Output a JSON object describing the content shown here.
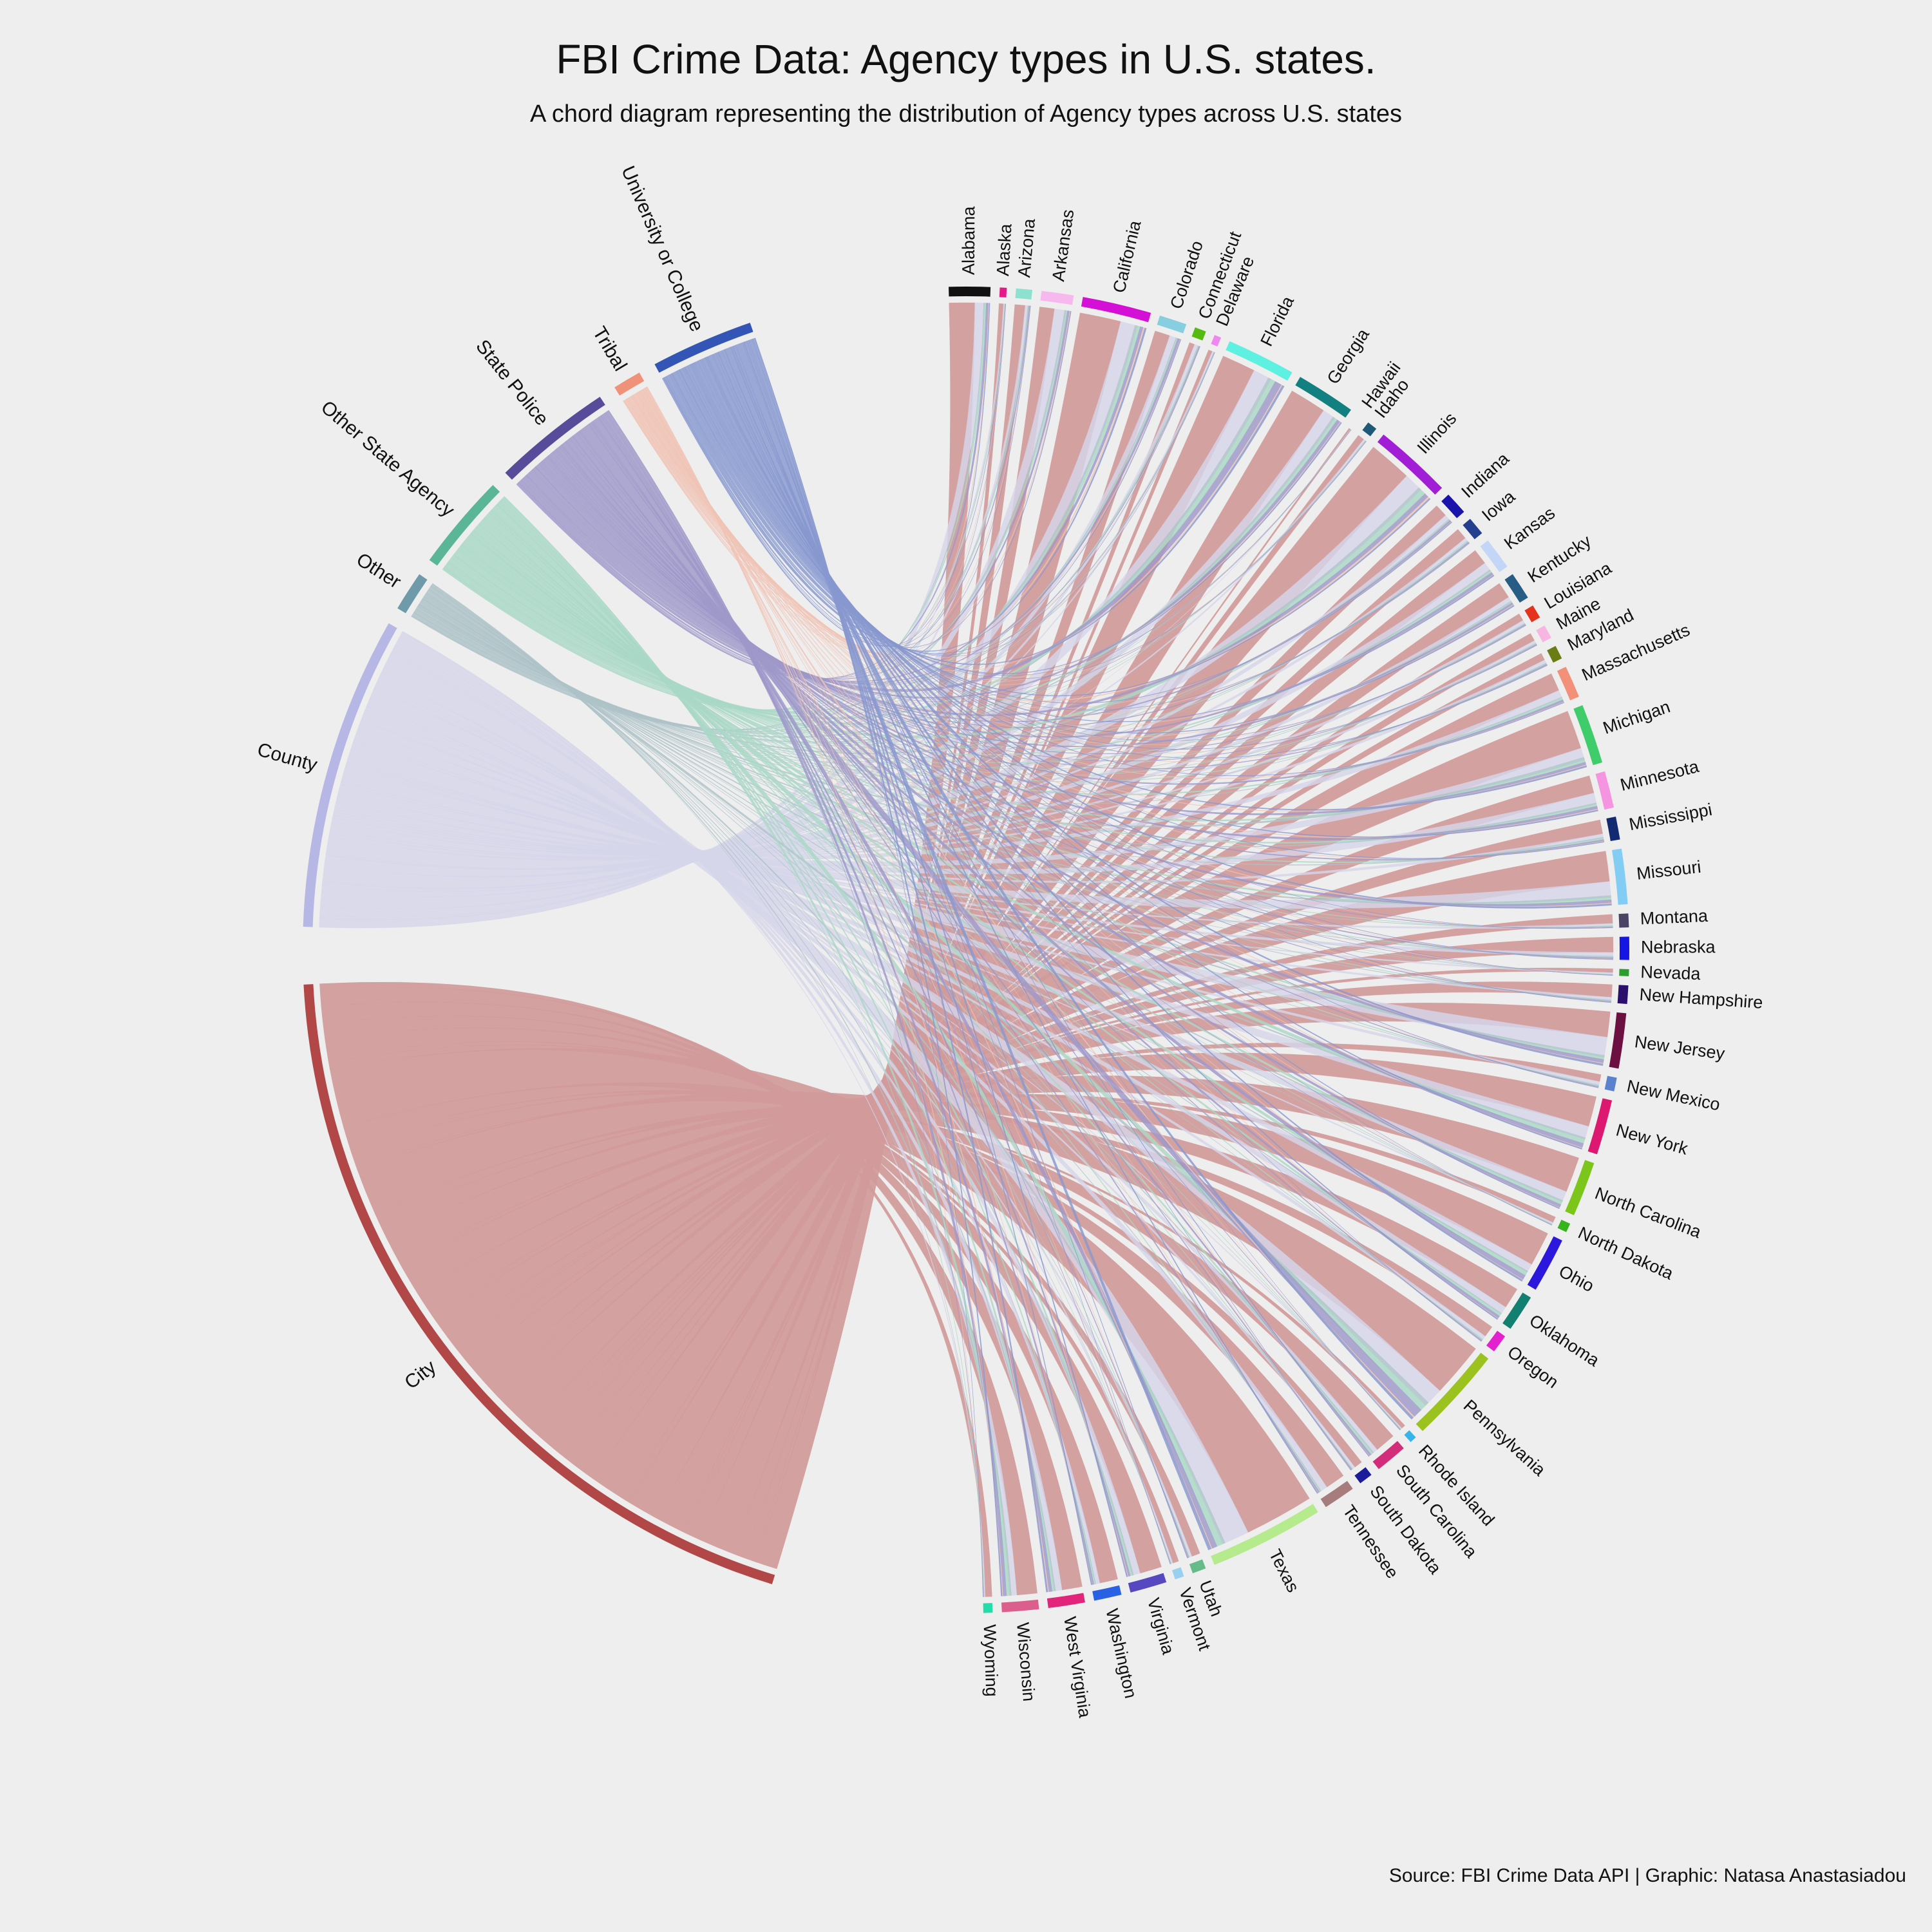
{
  "title": "FBI Crime Data: Agency types in U.S. states.",
  "subtitle": "A chord diagram representing the distribution of Agency types across U.S. states",
  "source": "Source: FBI Crime Data API | Graphic: Natasa Anastasiadou",
  "chart_data": {
    "type": "chord",
    "agency_types": [
      {
        "name": "City",
        "color": "#b24747",
        "band": "#d19a9a"
      },
      {
        "name": "County",
        "color": "#b7b7e5",
        "band": "#d6d6ea"
      },
      {
        "name": "Other",
        "color": "#6f9aa9",
        "band": "#aec3c8"
      },
      {
        "name": "Other State Agency",
        "color": "#5ab697",
        "band": "#a9d8c6"
      },
      {
        "name": "State Police",
        "color": "#574c99",
        "band": "#9f98c9"
      },
      {
        "name": "Tribal",
        "color": "#f0927a",
        "band": "#f0c4b6"
      },
      {
        "name": "University or College",
        "color": "#3355b5",
        "band": "#8798cf"
      }
    ],
    "states": [
      {
        "name": "Alabama",
        "color": "#111111",
        "value": 9
      },
      {
        "name": "Alaska",
        "color": "#e31a87",
        "value": 1.5
      },
      {
        "name": "Arizona",
        "color": "#8ee0cf",
        "value": 3.5
      },
      {
        "name": "Arkansas",
        "color": "#f7b8ee",
        "value": 7
      },
      {
        "name": "California",
        "color": "#d40fd6",
        "value": 15
      },
      {
        "name": "Colorado",
        "color": "#87cfe0",
        "value": 6
      },
      {
        "name": "Connecticut",
        "color": "#55bb11",
        "value": 2.5
      },
      {
        "name": "Delaware",
        "color": "#ee88ee",
        "value": 1.5
      },
      {
        "name": "Florida",
        "color": "#5ef0e0",
        "value": 15
      },
      {
        "name": "Georgia",
        "color": "#128080",
        "value": 13
      },
      {
        "name": "Hawaii",
        "color": "#eeeeee",
        "value": 0.6
      },
      {
        "name": "Idaho",
        "color": "#1e5a78",
        "value": 2.2
      },
      {
        "name": "Illinois",
        "color": "#a21ed6",
        "value": 17
      },
      {
        "name": "Indiana",
        "color": "#1a15aa",
        "value": 5
      },
      {
        "name": "Iowa",
        "color": "#243f8f",
        "value": 4
      },
      {
        "name": "Kansas",
        "color": "#c3d6f5",
        "value": 7
      },
      {
        "name": "Kentucky",
        "color": "#275d85",
        "value": 6
      },
      {
        "name": "Louisiana",
        "color": "#e4321c",
        "value": 3
      },
      {
        "name": "Maine",
        "color": "#f7b5e2",
        "value": 3
      },
      {
        "name": "Maryland",
        "color": "#697d14",
        "value": 3
      },
      {
        "name": "Massachusetts",
        "color": "#f2907a",
        "value": 7
      },
      {
        "name": "Michigan",
        "color": "#3fcc6b",
        "value": 13
      },
      {
        "name": "Minnesota",
        "color": "#f594e0",
        "value": 8
      },
      {
        "name": "Mississippi",
        "color": "#122a72",
        "value": 5
      },
      {
        "name": "Missouri",
        "color": "#83cdf5",
        "value": 12
      },
      {
        "name": "Montana",
        "color": "#4b4366",
        "value": 3
      },
      {
        "name": "Nebraska",
        "color": "#1616e4",
        "value": 5
      },
      {
        "name": "Nevada",
        "color": "#2d9e2d",
        "value": 1.5
      },
      {
        "name": "New Hampshire",
        "color": "#2a0f6c",
        "value": 4
      },
      {
        "name": "New Jersey",
        "color": "#6c1042",
        "value": 12
      },
      {
        "name": "New Mexico",
        "color": "#5a82cf",
        "value": 3
      },
      {
        "name": "New York",
        "color": "#dd1870",
        "value": 12
      },
      {
        "name": "North Carolina",
        "color": "#7cc61c",
        "value": 12
      },
      {
        "name": "North Dakota",
        "color": "#36b41e",
        "value": 2
      },
      {
        "name": "Ohio",
        "color": "#2c18dc",
        "value": 12
      },
      {
        "name": "Oklahoma",
        "color": "#128070",
        "value": 8
      },
      {
        "name": "Oregon",
        "color": "#e321cf",
        "value": 4
      },
      {
        "name": "Pennsylvania",
        "color": "#9bc21e",
        "value": 21
      },
      {
        "name": "Rhode Island",
        "color": "#38b4e8",
        "value": 1.5
      },
      {
        "name": "South Carolina",
        "color": "#d32c7a",
        "value": 7
      },
      {
        "name": "South Dakota",
        "color": "#1b1b9c",
        "value": 3
      },
      {
        "name": "Tennessee",
        "color": "#a77c7c",
        "value": 7
      },
      {
        "name": "Texas",
        "color": "#b5ea8d",
        "value": 25
      },
      {
        "name": "Utah",
        "color": "#66bb88",
        "value": 3
      },
      {
        "name": "Vermont",
        "color": "#99cfef",
        "value": 2
      },
      {
        "name": "Virginia",
        "color": "#5548c0",
        "value": 8
      },
      {
        "name": "Washington",
        "color": "#2861e4",
        "value": 6
      },
      {
        "name": "West Virginia",
        "color": "#e2247a",
        "value": 8
      },
      {
        "name": "Wisconsin",
        "color": "#db5e8c",
        "value": 8
      },
      {
        "name": "Wyoming",
        "color": "#22ddaa",
        "value": 2
      }
    ],
    "agency_spans_deg": [
      {
        "name": "City",
        "start": -163,
        "end": -93
      },
      {
        "name": "County",
        "start": -88,
        "end": -60.5
      },
      {
        "name": "Other",
        "start": -59,
        "end": -55.5
      },
      {
        "name": "Other State Agency",
        "start": -54,
        "end": -45.5
      },
      {
        "name": "State Police",
        "start": -44,
        "end": -33.5
      },
      {
        "name": "Tribal",
        "start": -32,
        "end": -29.5
      },
      {
        "name": "University or College",
        "start": -28,
        "end": -19
      }
    ],
    "state_arc_deg": {
      "start": -1.5,
      "end": 178.5,
      "gap": 0.8
    }
  }
}
